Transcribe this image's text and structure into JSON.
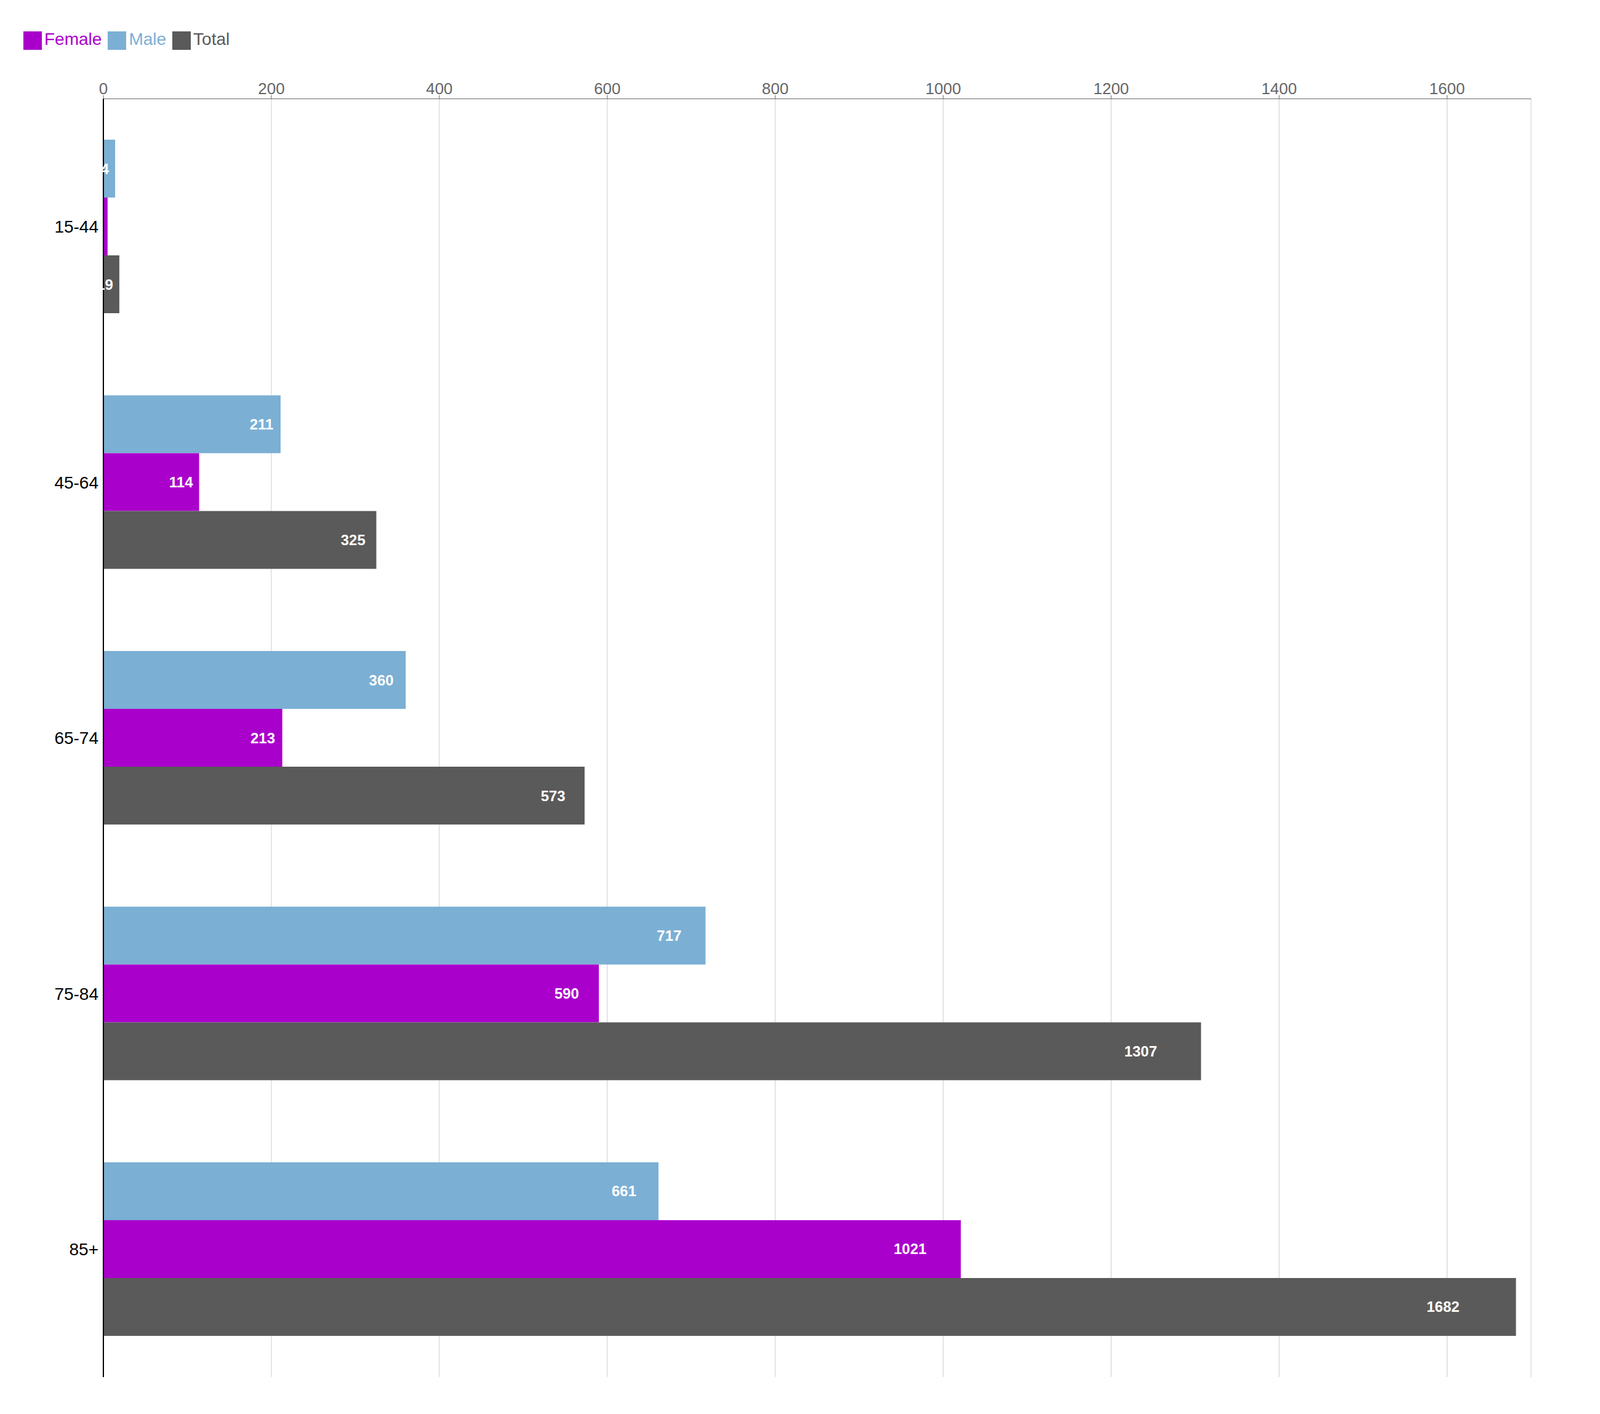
{
  "chart_data": {
    "type": "bar",
    "orientation": "horizontal",
    "categories": [
      "15-44",
      "45-64",
      "65-74",
      "75-84",
      "85+"
    ],
    "series": [
      {
        "name": "Male",
        "color": "#7BAFD4",
        "values": [
          14,
          211,
          360,
          717,
          661
        ]
      },
      {
        "name": "Female",
        "color": "#AA00CC",
        "values": [
          5,
          114,
          213,
          590,
          1021
        ],
        "value_labels": [
          null,
          "114",
          "213",
          "590",
          "1021"
        ]
      },
      {
        "name": "Total",
        "color": "#5A5A5A",
        "values": [
          19,
          325,
          573,
          1307,
          1682
        ]
      }
    ],
    "xlim": [
      0,
      1700
    ],
    "xticks": [
      0,
      200,
      400,
      600,
      800,
      1000,
      1200,
      1400,
      1600
    ],
    "grid": true,
    "legend": "upper left",
    "data_labels": true
  }
}
